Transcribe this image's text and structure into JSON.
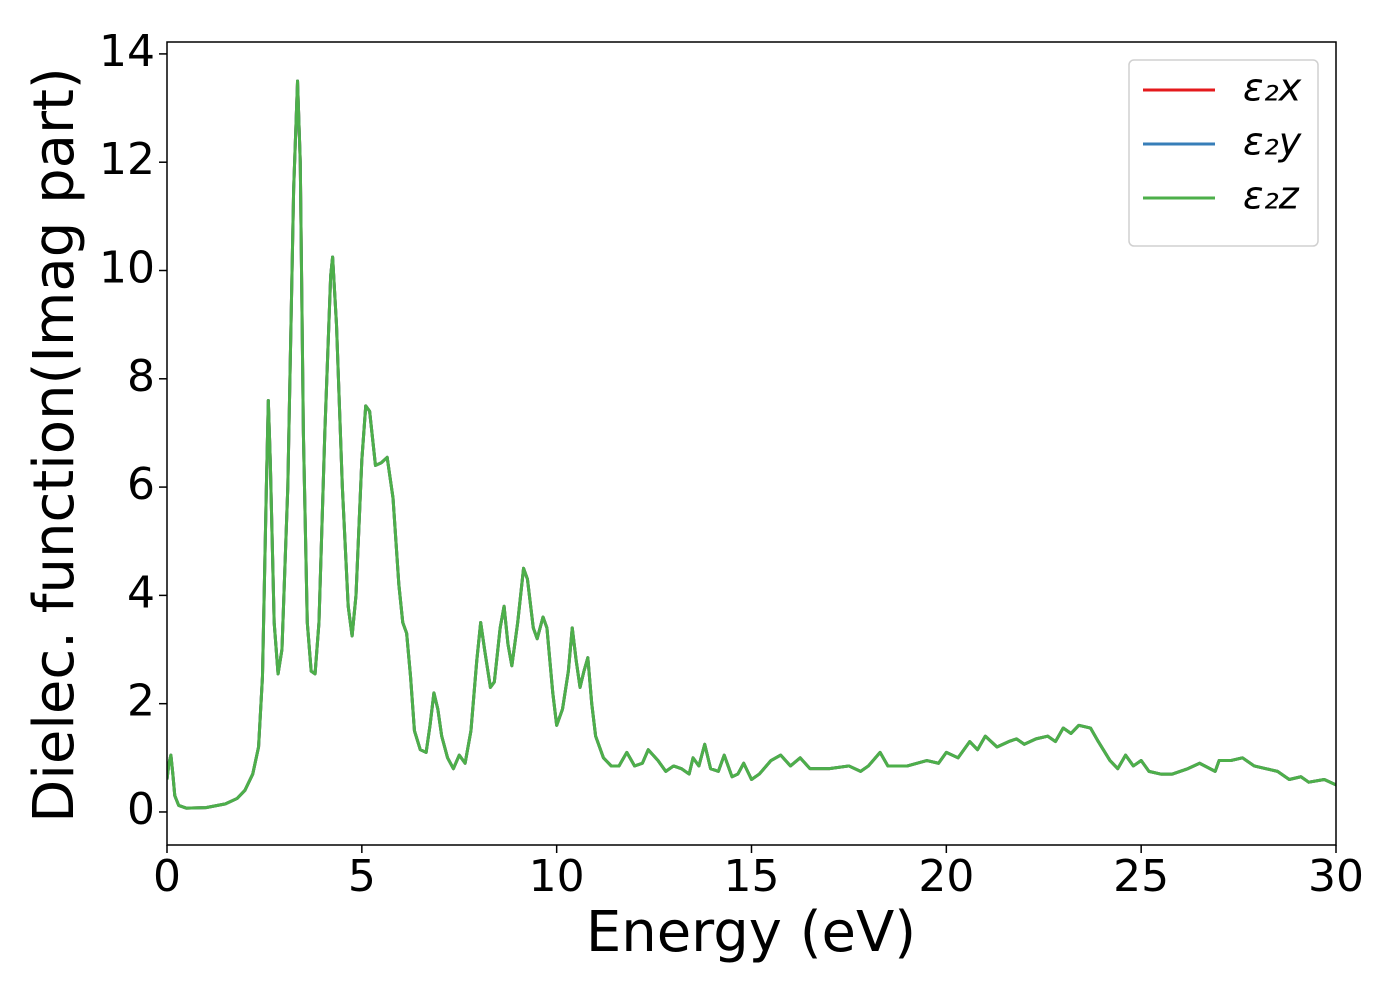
{
  "chart_data": {
    "type": "line",
    "xlabel": "Energy (eV)",
    "ylabel": "Dielec. function(Imag part)",
    "xlim": [
      0,
      30
    ],
    "ylim": [
      -0.61,
      14.22
    ],
    "xticks": [
      0,
      5,
      10,
      15,
      20,
      25,
      30
    ],
    "yticks": [
      0,
      2,
      4,
      6,
      8,
      10,
      12,
      14
    ],
    "legend": "upper right",
    "x": [
      0,
      0.05,
      0.1,
      0.15,
      0.2,
      0.3,
      0.5,
      1.0,
      1.5,
      1.8,
      2.0,
      2.2,
      2.35,
      2.45,
      2.55,
      2.6,
      2.65,
      2.75,
      2.85,
      2.95,
      3.1,
      3.25,
      3.35,
      3.42,
      3.5,
      3.6,
      3.7,
      3.8,
      3.9,
      4.05,
      4.2,
      4.25,
      4.35,
      4.5,
      4.65,
      4.75,
      4.85,
      5.0,
      5.1,
      5.2,
      5.35,
      5.5,
      5.65,
      5.8,
      5.95,
      6.05,
      6.15,
      6.25,
      6.35,
      6.5,
      6.65,
      6.75,
      6.85,
      6.95,
      7.05,
      7.2,
      7.35,
      7.5,
      7.65,
      7.8,
      7.95,
      8.05,
      8.15,
      8.3,
      8.4,
      8.55,
      8.65,
      8.75,
      8.85,
      9.0,
      9.15,
      9.25,
      9.4,
      9.5,
      9.65,
      9.75,
      9.9,
      10.0,
      10.15,
      10.3,
      10.4,
      10.5,
      10.6,
      10.7,
      10.8,
      10.9,
      11.0,
      11.2,
      11.4,
      11.6,
      11.8,
      12.0,
      12.2,
      12.35,
      12.6,
      12.8,
      13.0,
      13.2,
      13.4,
      13.5,
      13.65,
      13.8,
      13.95,
      14.15,
      14.3,
      14.5,
      14.65,
      14.8,
      15.0,
      15.2,
      15.5,
      15.75,
      16.0,
      16.25,
      16.5,
      17.0,
      17.5,
      17.8,
      18.0,
      18.3,
      18.5,
      19.0,
      19.5,
      19.8,
      20.0,
      20.3,
      20.6,
      20.8,
      21.0,
      21.3,
      21.6,
      21.8,
      22.0,
      22.3,
      22.6,
      22.8,
      23.0,
      23.2,
      23.4,
      23.7,
      23.9,
      24.2,
      24.4,
      24.6,
      24.8,
      25.0,
      25.2,
      25.5,
      25.8,
      26.2,
      26.5,
      26.9,
      27.0,
      27.3,
      27.6,
      27.9,
      28.2,
      28.5,
      28.8,
      29.1,
      29.3,
      29.7,
      30
    ],
    "series": [
      {
        "name": "ε₂x",
        "color": "#e41a1c",
        "values": [
          0.6,
          0.9,
          1.05,
          0.7,
          0.3,
          0.12,
          0.07,
          0.08,
          0.15,
          0.25,
          0.4,
          0.7,
          1.2,
          2.5,
          6.0,
          7.6,
          6.5,
          3.5,
          2.55,
          3.0,
          6.0,
          11.5,
          13.5,
          12.0,
          7.0,
          3.5,
          2.6,
          2.55,
          3.5,
          7.0,
          9.9,
          10.25,
          9.0,
          6.0,
          3.8,
          3.25,
          4.0,
          6.5,
          7.5,
          7.4,
          6.4,
          6.45,
          6.55,
          5.8,
          4.2,
          3.5,
          3.3,
          2.5,
          1.5,
          1.15,
          1.1,
          1.6,
          2.2,
          1.9,
          1.4,
          1.0,
          0.8,
          1.05,
          0.9,
          1.5,
          2.8,
          3.5,
          3.0,
          2.3,
          2.4,
          3.4,
          3.8,
          3.1,
          2.7,
          3.5,
          4.5,
          4.3,
          3.4,
          3.2,
          3.6,
          3.4,
          2.2,
          1.6,
          1.9,
          2.6,
          3.4,
          2.8,
          2.3,
          2.6,
          2.85,
          2.0,
          1.4,
          1.0,
          0.85,
          0.85,
          1.1,
          0.85,
          0.9,
          1.15,
          0.95,
          0.75,
          0.85,
          0.8,
          0.7,
          1.0,
          0.85,
          1.25,
          0.8,
          0.75,
          1.05,
          0.65,
          0.7,
          0.9,
          0.6,
          0.7,
          0.95,
          1.05,
          0.85,
          1.0,
          0.8,
          0.8,
          0.85,
          0.75,
          0.85,
          1.1,
          0.85,
          0.85,
          0.95,
          0.9,
          1.1,
          1.0,
          1.3,
          1.15,
          1.4,
          1.2,
          1.3,
          1.35,
          1.25,
          1.35,
          1.4,
          1.3,
          1.55,
          1.45,
          1.6,
          1.55,
          1.3,
          0.95,
          0.8,
          1.05,
          0.85,
          0.95,
          0.75,
          0.7,
          0.7,
          0.8,
          0.9,
          0.75,
          0.95,
          0.95,
          1.0,
          0.85,
          0.8,
          0.75,
          0.6,
          0.65,
          0.55,
          0.6,
          0.5
        ]
      },
      {
        "name": "ε₂y",
        "color": "#377eb8",
        "values": [
          0.6,
          0.9,
          1.05,
          0.7,
          0.3,
          0.12,
          0.07,
          0.08,
          0.15,
          0.25,
          0.4,
          0.7,
          1.2,
          2.5,
          6.0,
          7.6,
          6.5,
          3.5,
          2.55,
          3.0,
          6.0,
          11.5,
          13.5,
          12.0,
          7.0,
          3.5,
          2.6,
          2.55,
          3.5,
          7.0,
          9.9,
          10.25,
          9.0,
          6.0,
          3.8,
          3.25,
          4.0,
          6.5,
          7.5,
          7.4,
          6.4,
          6.45,
          6.55,
          5.8,
          4.2,
          3.5,
          3.3,
          2.5,
          1.5,
          1.15,
          1.1,
          1.6,
          2.2,
          1.9,
          1.4,
          1.0,
          0.8,
          1.05,
          0.9,
          1.5,
          2.8,
          3.5,
          3.0,
          2.3,
          2.4,
          3.4,
          3.8,
          3.1,
          2.7,
          3.5,
          4.5,
          4.3,
          3.4,
          3.2,
          3.6,
          3.4,
          2.2,
          1.6,
          1.9,
          2.6,
          3.4,
          2.8,
          2.3,
          2.6,
          2.85,
          2.0,
          1.4,
          1.0,
          0.85,
          0.85,
          1.1,
          0.85,
          0.9,
          1.15,
          0.95,
          0.75,
          0.85,
          0.8,
          0.7,
          1.0,
          0.85,
          1.25,
          0.8,
          0.75,
          1.05,
          0.65,
          0.7,
          0.9,
          0.6,
          0.7,
          0.95,
          1.05,
          0.85,
          1.0,
          0.8,
          0.8,
          0.85,
          0.75,
          0.85,
          1.1,
          0.85,
          0.85,
          0.95,
          0.9,
          1.1,
          1.0,
          1.3,
          1.15,
          1.4,
          1.2,
          1.3,
          1.35,
          1.25,
          1.35,
          1.4,
          1.3,
          1.55,
          1.45,
          1.6,
          1.55,
          1.3,
          0.95,
          0.8,
          1.05,
          0.85,
          0.95,
          0.75,
          0.7,
          0.7,
          0.8,
          0.9,
          0.75,
          0.95,
          0.95,
          1.0,
          0.85,
          0.8,
          0.75,
          0.6,
          0.65,
          0.55,
          0.6,
          0.5
        ]
      },
      {
        "name": "ε₂z",
        "color": "#4daf4a",
        "values": [
          0.6,
          0.9,
          1.05,
          0.7,
          0.3,
          0.12,
          0.07,
          0.08,
          0.15,
          0.25,
          0.4,
          0.7,
          1.2,
          2.5,
          6.0,
          7.6,
          6.5,
          3.5,
          2.55,
          3.0,
          6.0,
          11.5,
          13.5,
          12.0,
          7.0,
          3.5,
          2.6,
          2.55,
          3.5,
          7.0,
          9.9,
          10.25,
          9.0,
          6.0,
          3.8,
          3.25,
          4.0,
          6.5,
          7.5,
          7.4,
          6.4,
          6.45,
          6.55,
          5.8,
          4.2,
          3.5,
          3.3,
          2.5,
          1.5,
          1.15,
          1.1,
          1.6,
          2.2,
          1.9,
          1.4,
          1.0,
          0.8,
          1.05,
          0.9,
          1.5,
          2.8,
          3.5,
          3.0,
          2.3,
          2.4,
          3.4,
          3.8,
          3.1,
          2.7,
          3.5,
          4.5,
          4.3,
          3.4,
          3.2,
          3.6,
          3.4,
          2.2,
          1.6,
          1.9,
          2.6,
          3.4,
          2.8,
          2.3,
          2.6,
          2.85,
          2.0,
          1.4,
          1.0,
          0.85,
          0.85,
          1.1,
          0.85,
          0.9,
          1.15,
          0.95,
          0.75,
          0.85,
          0.8,
          0.7,
          1.0,
          0.85,
          1.25,
          0.8,
          0.75,
          1.05,
          0.65,
          0.7,
          0.9,
          0.6,
          0.7,
          0.95,
          1.05,
          0.85,
          1.0,
          0.8,
          0.8,
          0.85,
          0.75,
          0.85,
          1.1,
          0.85,
          0.85,
          0.95,
          0.9,
          1.1,
          1.0,
          1.3,
          1.15,
          1.4,
          1.2,
          1.3,
          1.35,
          1.25,
          1.35,
          1.4,
          1.3,
          1.55,
          1.45,
          1.6,
          1.55,
          1.3,
          0.95,
          0.8,
          1.05,
          0.85,
          0.95,
          0.75,
          0.7,
          0.7,
          0.8,
          0.9,
          0.75,
          0.95,
          0.95,
          1.0,
          0.85,
          0.8,
          0.75,
          0.6,
          0.65,
          0.55,
          0.6,
          0.5
        ]
      }
    ]
  }
}
